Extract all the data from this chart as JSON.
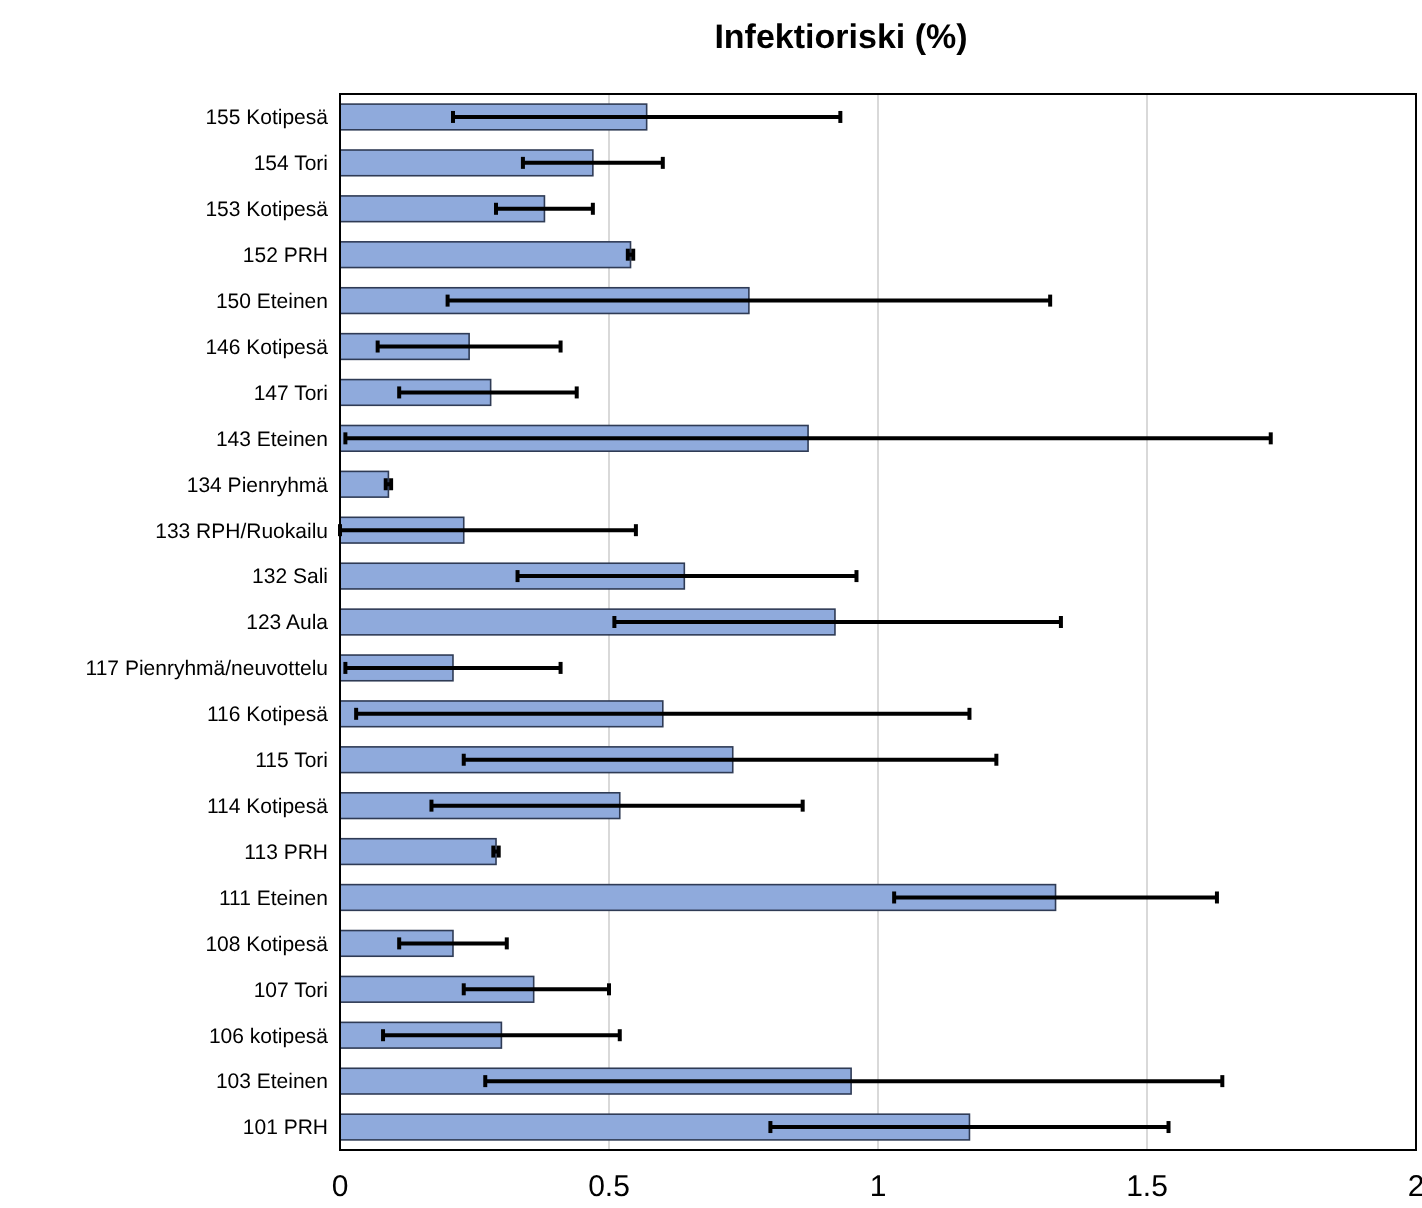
{
  "chart_data": {
    "type": "bar",
    "orientation": "horizontal",
    "title": "Infektioriski (%)",
    "categories": [
      "155 Kotipesä",
      "154 Tori",
      "153 Kotipesä",
      "152 PRH",
      "150 Eteinen",
      "146 Kotipesä",
      "147 Tori",
      "143 Eteinen",
      "134 Pienryhmä",
      "133 RPH/Ruokailu",
      "132 Sali",
      "123 Aula",
      "117 Pienryhmä/neuvottelu",
      "116 Kotipesä",
      "115 Tori",
      "114 Kotipesä",
      "113 PRH",
      "111 Eteinen",
      "108 Kotipesä",
      "107 Tori",
      "106 kotipesä",
      "103 Eteinen",
      "101 PRH"
    ],
    "values": [
      0.57,
      0.47,
      0.38,
      0.54,
      0.76,
      0.24,
      0.28,
      0.87,
      0.09,
      0.23,
      0.64,
      0.92,
      0.21,
      0.6,
      0.73,
      0.52,
      0.29,
      1.33,
      0.21,
      0.36,
      0.3,
      0.95,
      1.17
    ],
    "errors": [
      [
        0.21,
        0.93
      ],
      [
        0.34,
        0.6
      ],
      [
        0.29,
        0.47
      ],
      0.005,
      [
        0.2,
        1.32
      ],
      [
        0.07,
        0.41
      ],
      [
        0.11,
        0.44
      ],
      [
        0.01,
        1.73
      ],
      0.005,
      [
        0,
        0.55
      ],
      [
        0.33,
        0.96
      ],
      [
        0.51,
        1.34
      ],
      [
        0.01,
        0.41
      ],
      [
        0.03,
        1.17
      ],
      [
        0.23,
        1.22
      ],
      [
        0.17,
        0.86
      ],
      0.005,
      [
        1.03,
        1.63
      ],
      [
        0.11,
        0.31
      ],
      [
        0.23,
        0.5
      ],
      [
        0.08,
        0.52
      ],
      [
        0.27,
        1.64
      ],
      [
        0.8,
        1.54
      ]
    ],
    "color": "#8faadc",
    "xlim": [
      0,
      2
    ],
    "xticks": [
      0,
      0.5,
      1,
      1.5,
      2
    ],
    "grid": "x"
  }
}
